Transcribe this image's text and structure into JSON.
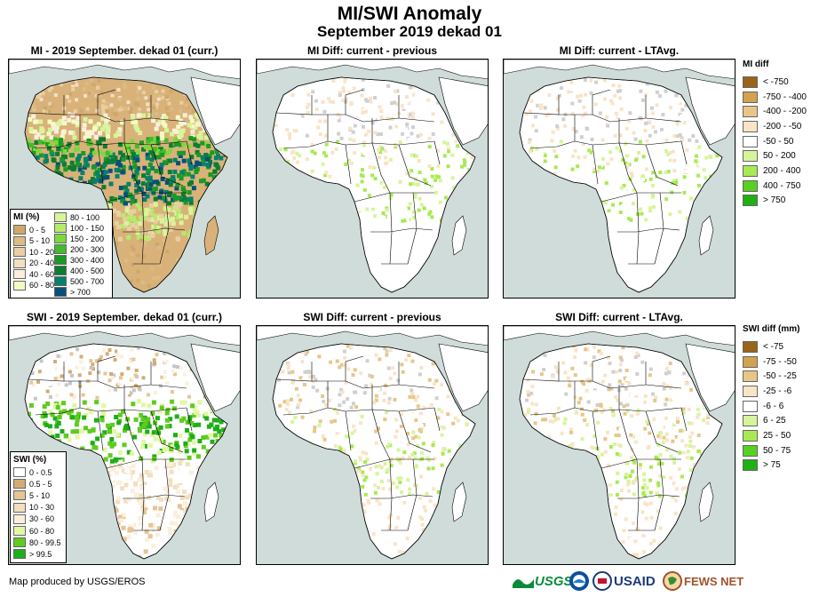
{
  "header": {
    "title": "MI/SWI Anomaly",
    "subtitle": "September 2019 dekad 01"
  },
  "panels": {
    "mi_curr": {
      "title": "MI - 2019  September. dekad 01 (curr.)"
    },
    "mi_prev": {
      "title": "MI Diff: current - previous"
    },
    "mi_lta": {
      "title": "MI Diff: current - LTAvg."
    },
    "swi_curr": {
      "title": "SWI - 2019  September. dekad 01 (curr.)"
    },
    "swi_prev": {
      "title": "SWI Diff: current - previous"
    },
    "swi_lta": {
      "title": "SWI Diff: current - LTAvg."
    }
  },
  "mi_legend": {
    "title": "MI (%)",
    "left": [
      {
        "label": "0 - 5",
        "color": "#cfa76a"
      },
      {
        "label": "5 - 10",
        "color": "#ddbb85"
      },
      {
        "label": "10 - 20",
        "color": "#e9cfa3"
      },
      {
        "label": "20 - 40",
        "color": "#f3e0c2"
      },
      {
        "label": "40 - 60",
        "color": "#fbefdc"
      },
      {
        "label": "60 - 80",
        "color": "#f4fbc2"
      }
    ],
    "right": [
      {
        "label": "80 - 100",
        "color": "#d8f59a"
      },
      {
        "label": "100 - 150",
        "color": "#b4ec6a"
      },
      {
        "label": "150 - 200",
        "color": "#7dd83c"
      },
      {
        "label": "200 - 300",
        "color": "#42bd2a"
      },
      {
        "label": "300 - 400",
        "color": "#1a9a25"
      },
      {
        "label": "400 - 500",
        "color": "#0d7d30"
      },
      {
        "label": "500 - 700",
        "color": "#08806e"
      },
      {
        "label": "> 700",
        "color": "#0a4f7a"
      }
    ]
  },
  "swi_legend": {
    "title": "SWI (%)",
    "items": [
      {
        "label": "0 - 0.5",
        "color": "#ffffff"
      },
      {
        "label": "0.5 - 5",
        "color": "#d4ac72"
      },
      {
        "label": "5 - 10",
        "color": "#e5c596"
      },
      {
        "label": "10 - 30",
        "color": "#f2dfc0"
      },
      {
        "label": "30 - 60",
        "color": "#fbefdc"
      },
      {
        "label": "60 - 80",
        "color": "#e2f7a4"
      },
      {
        "label": "80 - 99.5",
        "color": "#5fcb1f"
      },
      {
        "label": "> 99.5",
        "color": "#1fae1a"
      }
    ]
  },
  "mi_diff_legend": {
    "title": "MI diff",
    "items": [
      {
        "label": "< -750",
        "color": "#9a6419"
      },
      {
        "label": "-750 - -400",
        "color": "#d2a24f"
      },
      {
        "label": "-400 - -200",
        "color": "#e8c688"
      },
      {
        "label": "-200 - -50",
        "color": "#f8e4c7"
      },
      {
        "label": "-50 - 50",
        "color": "#ffffff"
      },
      {
        "label": "50 - 200",
        "color": "#d6f59b"
      },
      {
        "label": "200 - 400",
        "color": "#a8ea54"
      },
      {
        "label": "400 - 750",
        "color": "#56d122"
      },
      {
        "label": "> 750",
        "color": "#1fb014"
      }
    ]
  },
  "swi_diff_legend": {
    "title": "SWI diff (mm)",
    "items": [
      {
        "label": "< -75",
        "color": "#9a6419"
      },
      {
        "label": "-75 - -50",
        "color": "#d2a24f"
      },
      {
        "label": "-50 - -25",
        "color": "#e8c688"
      },
      {
        "label": "-25 - -6",
        "color": "#f8e4c7"
      },
      {
        "label": "-6 - 6",
        "color": "#ffffff"
      },
      {
        "label": "6 - 25",
        "color": "#d6f59b"
      },
      {
        "label": "25 - 50",
        "color": "#a8ea54"
      },
      {
        "label": "50 - 75",
        "color": "#56d122"
      },
      {
        "label": "> 75",
        "color": "#1fb014"
      }
    ]
  },
  "footer": {
    "credit": "Map produced by USGS/EROS",
    "logos": {
      "usgs": "USGS",
      "usaid": "USAID",
      "fewsnet": "FEWS NET"
    }
  }
}
